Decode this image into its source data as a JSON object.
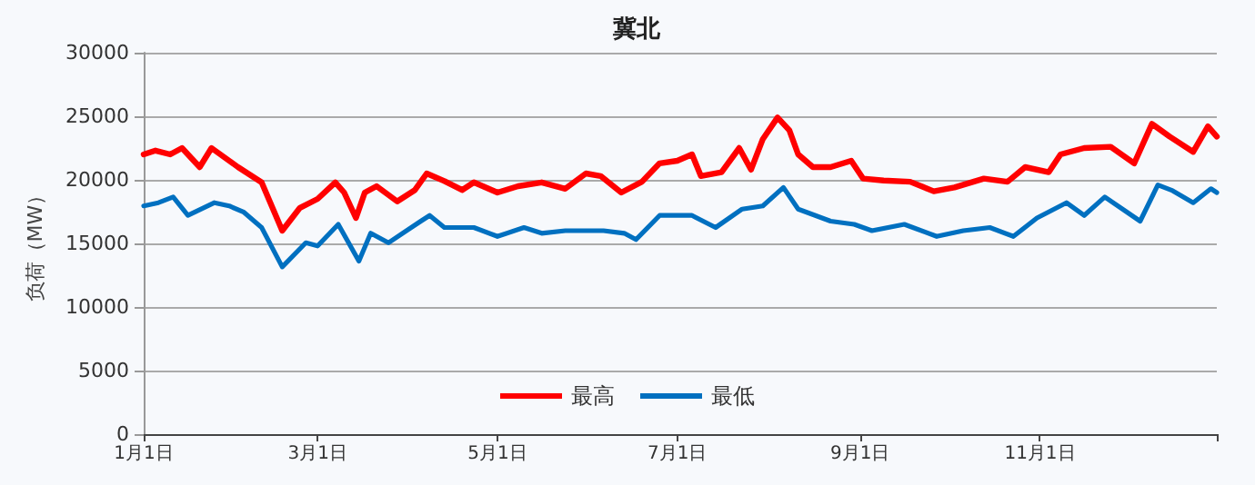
{
  "chart_data": {
    "type": "line",
    "title": "冀北",
    "ylabel": "负荷（MW）",
    "xlim": [
      "--01-01",
      "--12-31"
    ],
    "xticks": [
      {
        "value": "--01-01",
        "label": "1月1日"
      },
      {
        "value": "--03-01",
        "label": "3月1日"
      },
      {
        "value": "--05-01",
        "label": "5月1日"
      },
      {
        "value": "--07-01",
        "label": "7月1日"
      },
      {
        "value": "--09-01",
        "label": "9月1日"
      },
      {
        "value": "--11-01",
        "label": "11月1日"
      },
      {
        "value": "--12-31",
        "label": null
      }
    ],
    "ylim": [
      0,
      30000
    ],
    "yticks": [
      0,
      5000,
      10000,
      15000,
      20000,
      25000,
      30000
    ],
    "grid": "y",
    "legend": "bottom",
    "marker": "none",
    "line_style": "solid",
    "series": [
      {
        "name": "最高",
        "color": "#ff0000",
        "x": [
          "--01-01",
          "--01-05",
          "--01-10",
          "--01-14",
          "--01-20",
          "--01-24",
          "--02-02",
          "--02-10",
          "--02-17",
          "--02-23",
          "--03-01",
          "--03-07",
          "--03-10",
          "--03-14",
          "--03-17",
          "--03-21",
          "--03-28",
          "--04-03",
          "--04-07",
          "--04-13",
          "--04-19",
          "--04-23",
          "--05-01",
          "--05-08",
          "--05-16",
          "--05-24",
          "--05-31",
          "--06-05",
          "--06-12",
          "--06-19",
          "--06-25",
          "--07-01",
          "--07-06",
          "--07-09",
          "--07-16",
          "--07-22",
          "--07-26",
          "--07-30",
          "--08-04",
          "--08-08",
          "--08-11",
          "--08-16",
          "--08-22",
          "--08-29",
          "--09-02",
          "--09-09",
          "--09-18",
          "--09-26",
          "--10-03",
          "--10-13",
          "--10-21",
          "--10-27",
          "--11-04",
          "--11-08",
          "--11-16",
          "--11-25",
          "--12-03",
          "--12-09",
          "--12-15",
          "--12-23",
          "--12-28",
          "--12-31"
        ],
        "values": [
          22000,
          22300,
          22000,
          22500,
          21000,
          22500,
          21000,
          19800,
          16000,
          17800,
          18500,
          19800,
          19000,
          17000,
          19000,
          19500,
          18300,
          19200,
          20500,
          19900,
          19200,
          19800,
          19000,
          19500,
          19800,
          19300,
          20500,
          20300,
          19000,
          19850,
          21300,
          21500,
          22000,
          20300,
          20600,
          22500,
          20800,
          23200,
          24900,
          23900,
          22000,
          21000,
          21000,
          21500,
          20100,
          19950,
          19850,
          19100,
          19400,
          20100,
          19850,
          21000,
          20600,
          22000,
          22500,
          22600,
          21300,
          24400,
          23400,
          22200,
          24200,
          23400
        ]
      },
      {
        "name": "最低",
        "color": "#0070c0",
        "x": [
          "--01-01",
          "--01-06",
          "--01-11",
          "--01-16",
          "--01-25",
          "--01-30",
          "--02-04",
          "--02-10",
          "--02-17",
          "--02-25",
          "--03-01",
          "--03-08",
          "--03-15",
          "--03-19",
          "--03-25",
          "--04-05",
          "--04-08",
          "--04-13",
          "--04-23",
          "--05-01",
          "--05-10",
          "--05-16",
          "--05-24",
          "--06-06",
          "--06-13",
          "--06-17",
          "--06-25",
          "--07-06",
          "--07-14",
          "--07-23",
          "--07-30",
          "--08-06",
          "--08-11",
          "--08-22",
          "--08-30",
          "--09-05",
          "--09-16",
          "--09-27",
          "--10-06",
          "--10-15",
          "--10-23",
          "--10-31",
          "--11-10",
          "--11-16",
          "--11-23",
          "--12-05",
          "--12-11",
          "--12-16",
          "--12-23",
          "--12-29",
          "--12-31"
        ],
        "values": [
          17950,
          18200,
          18650,
          17200,
          18200,
          17950,
          17450,
          16250,
          13150,
          15050,
          14800,
          16500,
          13600,
          15800,
          15050,
          16750,
          17200,
          16250,
          16250,
          15550,
          16250,
          15800,
          16000,
          16000,
          15800,
          15300,
          17200,
          17200,
          16250,
          17700,
          17950,
          19400,
          17700,
          16750,
          16500,
          16000,
          16500,
          15550,
          16000,
          16250,
          15550,
          17000,
          18200,
          17200,
          18650,
          16750,
          19600,
          19150,
          18200,
          19300,
          19000
        ]
      }
    ]
  }
}
